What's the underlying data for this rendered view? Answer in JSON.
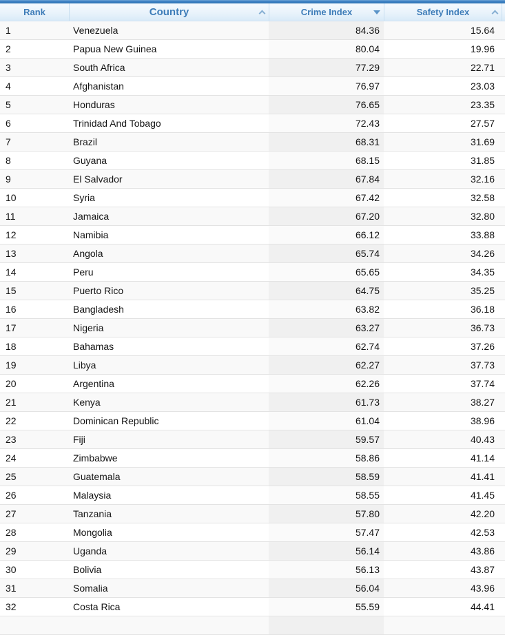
{
  "colors": {
    "topbar_blue": "#3A7EC2",
    "header_text_blue": "#3D7CB8",
    "header_bg_light": "#E9F3FB",
    "sorted_column_odd": "#F0F0F0",
    "sorted_column_even": "#FAFAFA",
    "row_stripe": "#F9F9F9",
    "row_border": "#E3E3E3"
  },
  "table": {
    "columns": [
      {
        "label": "Rank",
        "sort_indicator": "none"
      },
      {
        "label": "Country",
        "sort_indicator": "ascending-chevron"
      },
      {
        "label": "Crime Index",
        "sort_indicator": "descending-triangle-active"
      },
      {
        "label": "Safety Index",
        "sort_indicator": "ascending-chevron"
      }
    ],
    "rows": [
      {
        "rank": "1",
        "country": "Venezuela",
        "crime": "84.36",
        "safety": "15.64"
      },
      {
        "rank": "2",
        "country": "Papua New Guinea",
        "crime": "80.04",
        "safety": "19.96"
      },
      {
        "rank": "3",
        "country": "South Africa",
        "crime": "77.29",
        "safety": "22.71"
      },
      {
        "rank": "4",
        "country": "Afghanistan",
        "crime": "76.97",
        "safety": "23.03"
      },
      {
        "rank": "5",
        "country": "Honduras",
        "crime": "76.65",
        "safety": "23.35"
      },
      {
        "rank": "6",
        "country": "Trinidad And Tobago",
        "crime": "72.43",
        "safety": "27.57"
      },
      {
        "rank": "7",
        "country": "Brazil",
        "crime": "68.31",
        "safety": "31.69"
      },
      {
        "rank": "8",
        "country": "Guyana",
        "crime": "68.15",
        "safety": "31.85"
      },
      {
        "rank": "9",
        "country": "El Salvador",
        "crime": "67.84",
        "safety": "32.16"
      },
      {
        "rank": "10",
        "country": "Syria",
        "crime": "67.42",
        "safety": "32.58"
      },
      {
        "rank": "11",
        "country": "Jamaica",
        "crime": "67.20",
        "safety": "32.80"
      },
      {
        "rank": "12",
        "country": "Namibia",
        "crime": "66.12",
        "safety": "33.88"
      },
      {
        "rank": "13",
        "country": "Angola",
        "crime": "65.74",
        "safety": "34.26"
      },
      {
        "rank": "14",
        "country": "Peru",
        "crime": "65.65",
        "safety": "34.35"
      },
      {
        "rank": "15",
        "country": "Puerto Rico",
        "crime": "64.75",
        "safety": "35.25"
      },
      {
        "rank": "16",
        "country": "Bangladesh",
        "crime": "63.82",
        "safety": "36.18"
      },
      {
        "rank": "17",
        "country": "Nigeria",
        "crime": "63.27",
        "safety": "36.73"
      },
      {
        "rank": "18",
        "country": "Bahamas",
        "crime": "62.74",
        "safety": "37.26"
      },
      {
        "rank": "19",
        "country": "Libya",
        "crime": "62.27",
        "safety": "37.73"
      },
      {
        "rank": "20",
        "country": "Argentina",
        "crime": "62.26",
        "safety": "37.74"
      },
      {
        "rank": "21",
        "country": "Kenya",
        "crime": "61.73",
        "safety": "38.27"
      },
      {
        "rank": "22",
        "country": "Dominican Republic",
        "crime": "61.04",
        "safety": "38.96"
      },
      {
        "rank": "23",
        "country": "Fiji",
        "crime": "59.57",
        "safety": "40.43"
      },
      {
        "rank": "24",
        "country": "Zimbabwe",
        "crime": "58.86",
        "safety": "41.14"
      },
      {
        "rank": "25",
        "country": "Guatemala",
        "crime": "58.59",
        "safety": "41.41"
      },
      {
        "rank": "26",
        "country": "Malaysia",
        "crime": "58.55",
        "safety": "41.45"
      },
      {
        "rank": "27",
        "country": "Tanzania",
        "crime": "57.80",
        "safety": "42.20"
      },
      {
        "rank": "28",
        "country": "Mongolia",
        "crime": "57.47",
        "safety": "42.53"
      },
      {
        "rank": "29",
        "country": "Uganda",
        "crime": "56.14",
        "safety": "43.86"
      },
      {
        "rank": "30",
        "country": "Bolivia",
        "crime": "56.13",
        "safety": "43.87"
      },
      {
        "rank": "31",
        "country": "Somalia",
        "crime": "56.04",
        "safety": "43.96"
      },
      {
        "rank": "32",
        "country": "Costa Rica",
        "crime": "55.59",
        "safety": "44.41"
      }
    ]
  }
}
